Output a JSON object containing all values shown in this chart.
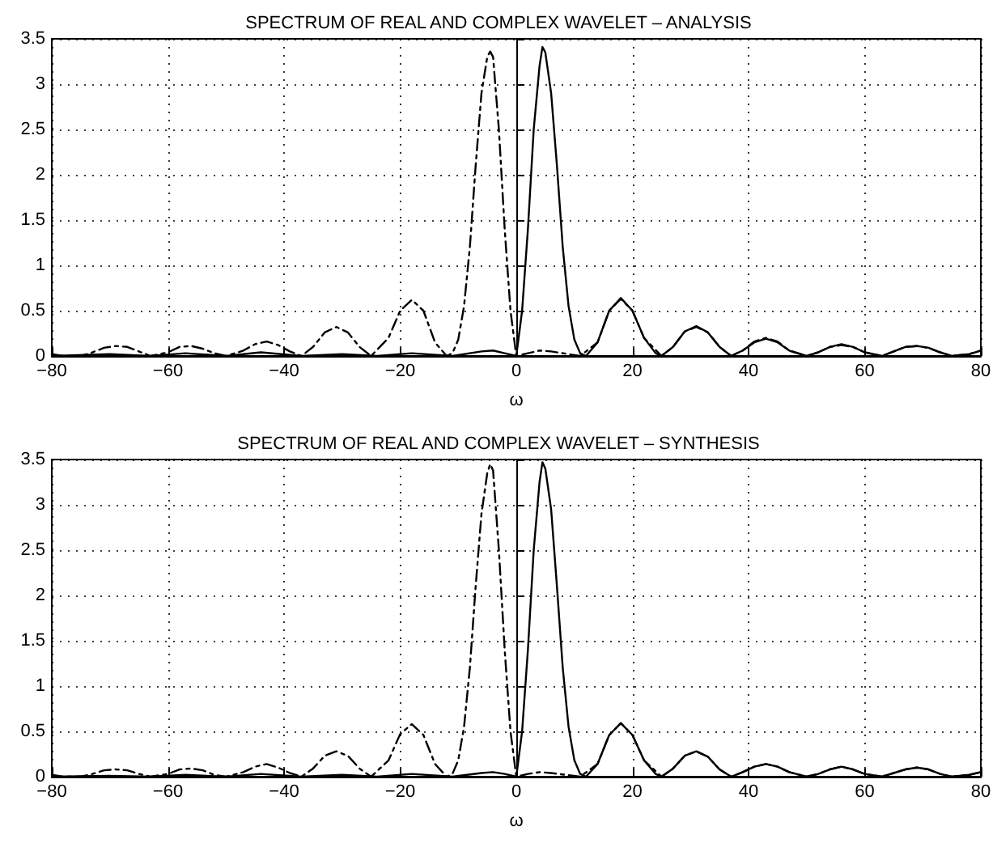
{
  "chart_data": [
    {
      "type": "line",
      "title": "SPECTRUM OF REAL AND COMPLEX WAVELET – ANALYSIS",
      "xlabel": "ω",
      "xlim": [
        -80,
        80
      ],
      "xticks": [
        -80,
        -60,
        -40,
        -20,
        0,
        20,
        40,
        60,
        80
      ],
      "ylim": [
        0,
        3.5
      ],
      "yticks": [
        0,
        0.5,
        1,
        1.5,
        2,
        2.5,
        3,
        3.5
      ],
      "grid": true,
      "marker": "none",
      "series": [
        {
          "color": "#000000",
          "line_style": "solid",
          "x": [
            -80,
            -70,
            -63,
            -57,
            -50,
            -44,
            -37,
            -30,
            -24,
            -18,
            -11,
            -6,
            -4,
            -2,
            0,
            1,
            2,
            3,
            4,
            4.5,
            5,
            6,
            7,
            8,
            9,
            10,
            11,
            12,
            14,
            16,
            18,
            20,
            22,
            24,
            25,
            27,
            29,
            31,
            33,
            35,
            37,
            39,
            41,
            43,
            45,
            47,
            50,
            52,
            54,
            56,
            58,
            60,
            63,
            65,
            67,
            69,
            71,
            73,
            75,
            78,
            80
          ],
          "values": [
            0,
            0.02,
            0,
            0.03,
            0,
            0.04,
            0,
            0.02,
            0,
            0.03,
            0,
            0.05,
            0.06,
            0.03,
            0,
            0.5,
            1.4,
            2.5,
            3.2,
            3.41,
            3.35,
            2.9,
            2.1,
            1.2,
            0.55,
            0.18,
            0.03,
            0,
            0.15,
            0.5,
            0.64,
            0.5,
            0.2,
            0.03,
            0,
            0.1,
            0.27,
            0.33,
            0.26,
            0.1,
            0,
            0.06,
            0.15,
            0.19,
            0.15,
            0.06,
            0,
            0.04,
            0.1,
            0.13,
            0.1,
            0.04,
            0,
            0.05,
            0.1,
            0.11,
            0.09,
            0.04,
            0,
            0.02,
            0.06
          ]
        },
        {
          "color": "#000000",
          "line_style": "dashed",
          "x": [
            -80,
            -78,
            -75,
            -73,
            -71,
            -69,
            -67,
            -65,
            -63,
            -60,
            -58,
            -56,
            -54,
            -52,
            -50,
            -47,
            -45,
            -43,
            -41,
            -39,
            -37,
            -35,
            -33,
            -31,
            -29,
            -27,
            -25,
            -22,
            -20,
            -18,
            -16,
            -14,
            -12,
            -11,
            -10,
            -9,
            -8,
            -7,
            -6,
            -5,
            -4.5,
            -4,
            -3,
            -2,
            -1,
            0,
            2,
            4,
            6,
            11,
            14,
            16,
            18,
            20,
            22,
            25,
            27,
            29,
            31,
            33,
            35,
            37,
            39,
            41,
            43,
            45,
            47,
            50,
            52,
            54,
            56,
            58,
            60,
            63,
            65,
            67,
            69,
            71,
            73,
            75,
            78,
            80
          ],
          "values": [
            0.02,
            0,
            0,
            0.04,
            0.09,
            0.11,
            0.1,
            0.05,
            0,
            0.04,
            0.1,
            0.11,
            0.08,
            0.03,
            0,
            0.06,
            0.13,
            0.16,
            0.12,
            0.05,
            0,
            0.1,
            0.26,
            0.32,
            0.26,
            0.1,
            0,
            0.2,
            0.5,
            0.62,
            0.5,
            0.15,
            0,
            0.03,
            0.18,
            0.55,
            1.2,
            2.1,
            2.9,
            3.3,
            3.36,
            3.3,
            2.5,
            1.4,
            0.5,
            0,
            0.03,
            0.06,
            0.05,
            0,
            0.15,
            0.5,
            0.63,
            0.5,
            0.2,
            0,
            0.1,
            0.27,
            0.32,
            0.26,
            0.1,
            0,
            0.06,
            0.16,
            0.2,
            0.16,
            0.06,
            0,
            0.04,
            0.1,
            0.12,
            0.1,
            0.04,
            0,
            0.05,
            0.1,
            0.11,
            0.09,
            0.04,
            0,
            0.02,
            0.06
          ]
        }
      ]
    },
    {
      "type": "line",
      "title": "SPECTRUM OF REAL AND COMPLEX WAVELET – SYNTHESIS",
      "xlabel": "ω",
      "xlim": [
        -80,
        80
      ],
      "xticks": [
        -80,
        -60,
        -40,
        -20,
        0,
        20,
        40,
        60,
        80
      ],
      "ylim": [
        0,
        3.5
      ],
      "yticks": [
        0,
        0.5,
        1,
        1.5,
        2,
        2.5,
        3,
        3.5
      ],
      "grid": true,
      "marker": "none",
      "series": [
        {
          "color": "#000000",
          "line_style": "solid",
          "x": [
            -80,
            -70,
            -63,
            -57,
            -50,
            -44,
            -37,
            -30,
            -24,
            -18,
            -11,
            -6,
            -4,
            -2,
            0,
            1,
            2,
            3,
            4,
            4.5,
            5,
            6,
            7,
            8,
            9,
            10,
            11,
            12,
            14,
            16,
            18,
            20,
            22,
            24,
            25,
            27,
            29,
            31,
            33,
            35,
            37,
            39,
            41,
            43,
            45,
            47,
            50,
            52,
            54,
            56,
            58,
            60,
            63,
            65,
            67,
            69,
            71,
            73,
            75,
            78,
            80
          ],
          "values": [
            0,
            0.01,
            0,
            0.02,
            0,
            0.03,
            0,
            0.02,
            0,
            0.03,
            0,
            0.04,
            0.05,
            0.03,
            0,
            0.5,
            1.4,
            2.5,
            3.25,
            3.47,
            3.4,
            2.95,
            2.1,
            1.2,
            0.55,
            0.18,
            0.03,
            0,
            0.14,
            0.46,
            0.59,
            0.46,
            0.18,
            0.03,
            0,
            0.09,
            0.23,
            0.28,
            0.22,
            0.08,
            0,
            0.05,
            0.11,
            0.14,
            0.11,
            0.05,
            0,
            0.03,
            0.08,
            0.11,
            0.08,
            0.03,
            0,
            0.04,
            0.08,
            0.1,
            0.08,
            0.03,
            0,
            0.02,
            0.05
          ]
        },
        {
          "color": "#000000",
          "line_style": "dashed",
          "x": [
            -80,
            -78,
            -75,
            -73,
            -71,
            -69,
            -67,
            -65,
            -63,
            -60,
            -58,
            -56,
            -54,
            -52,
            -50,
            -47,
            -45,
            -43,
            -41,
            -39,
            -37,
            -35,
            -33,
            -31,
            -29,
            -27,
            -25,
            -22,
            -20,
            -18,
            -16,
            -14,
            -12,
            -11,
            -10,
            -9,
            -8,
            -7,
            -6,
            -5,
            -4.5,
            -4,
            -3,
            -2,
            -1,
            0,
            2,
            4,
            6,
            11,
            14,
            16,
            18,
            20,
            22,
            25,
            27,
            29,
            31,
            33,
            35,
            37,
            39,
            41,
            43,
            45,
            47,
            50,
            52,
            54,
            56,
            58,
            60,
            63,
            65,
            67,
            69,
            71,
            73,
            75,
            78,
            80
          ],
          "values": [
            0.02,
            0,
            0,
            0.03,
            0.07,
            0.08,
            0.07,
            0.03,
            0,
            0.03,
            0.08,
            0.09,
            0.07,
            0.02,
            0,
            0.05,
            0.11,
            0.14,
            0.1,
            0.04,
            0,
            0.09,
            0.23,
            0.28,
            0.23,
            0.09,
            0,
            0.18,
            0.47,
            0.58,
            0.46,
            0.14,
            0,
            0.03,
            0.18,
            0.55,
            1.2,
            2.1,
            2.9,
            3.35,
            3.45,
            3.38,
            2.5,
            1.4,
            0.5,
            0,
            0.03,
            0.05,
            0.04,
            0,
            0.14,
            0.46,
            0.59,
            0.46,
            0.18,
            0,
            0.09,
            0.23,
            0.28,
            0.22,
            0.08,
            0,
            0.05,
            0.11,
            0.14,
            0.11,
            0.05,
            0,
            0.03,
            0.08,
            0.11,
            0.08,
            0.03,
            0,
            0.04,
            0.08,
            0.1,
            0.08,
            0.03,
            0,
            0.02,
            0.05
          ]
        }
      ]
    }
  ]
}
